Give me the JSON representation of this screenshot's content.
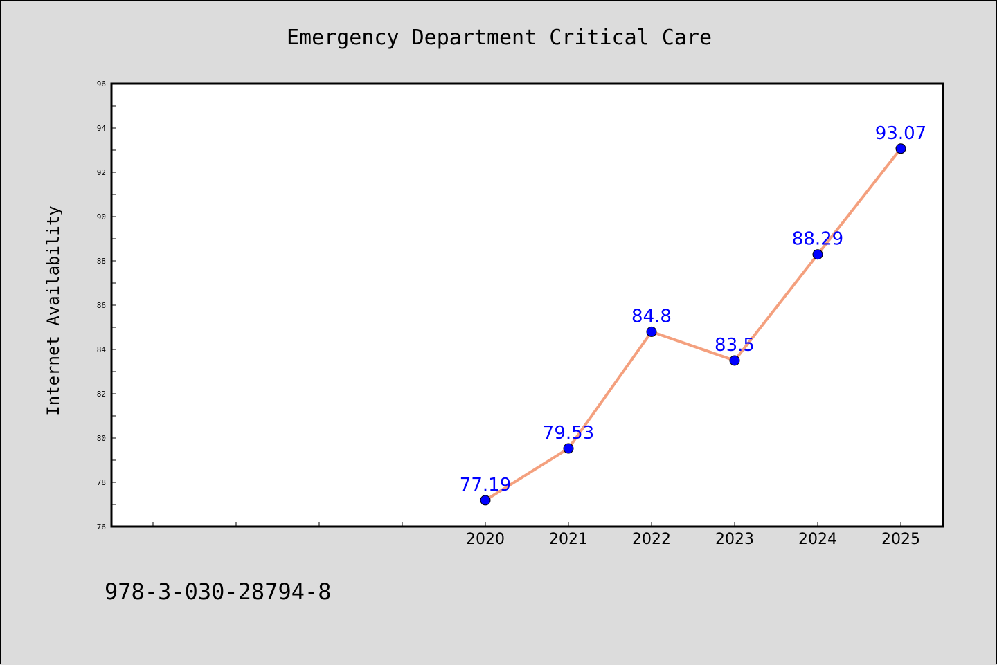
{
  "footnote": "978-3-030-28794-8",
  "colors": {
    "background": "#dcdcdc",
    "plot_background": "#ffffff",
    "line": "#f4a07e",
    "marker": "#0000ff",
    "data_label": "#0000ff"
  },
  "chart_data": {
    "type": "line",
    "title": "Emergency Department Critical Care",
    "xlabel": "",
    "ylabel": "Internet Availability",
    "categories": [
      "2020",
      "2021",
      "2022",
      "2023",
      "2024",
      "2025"
    ],
    "values": [
      77.19,
      79.53,
      84.8,
      83.5,
      88.29,
      93.07
    ],
    "data_labels": [
      "77.19",
      "79.53",
      "84.8",
      "83.5",
      "88.29",
      "93.07"
    ],
    "ylim": [
      76,
      96
    ],
    "yticks": [
      "76",
      "78",
      "80",
      "82",
      "84",
      "86",
      "88",
      "90",
      "92",
      "94",
      "96"
    ],
    "grid": false,
    "legend": "none",
    "x_extra_ticks_left": 4,
    "y_minor_ticks": true,
    "marker": "circle"
  }
}
